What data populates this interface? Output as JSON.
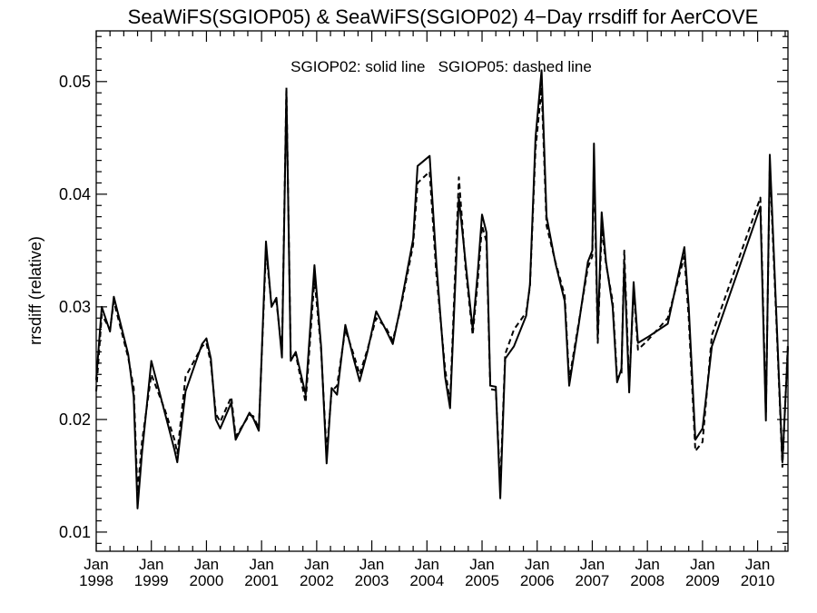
{
  "chart_data": {
    "type": "line",
    "title": "SeaWiFS(SGIOP05) & SeaWiFS(SGIOP02) 4−Day rrsdiff for AerCOVE",
    "annotation": "SGIOP02: solid line   SGIOP05: dashed line",
    "ylabel": "rrsdiff (relative)",
    "xlabel": "",
    "xlim": [
      1998.0,
      2010.55
    ],
    "ylim": [
      0.0083,
      0.0545
    ],
    "yticks": [
      {
        "value": 0.01,
        "label": "0.01"
      },
      {
        "value": 0.02,
        "label": "0.02"
      },
      {
        "value": 0.03,
        "label": "0.03"
      },
      {
        "value": 0.04,
        "label": "0.04"
      },
      {
        "value": 0.05,
        "label": "0.05"
      }
    ],
    "xticks": [
      {
        "value": 1998,
        "month": "Jan",
        "year": "1998"
      },
      {
        "value": 1999,
        "month": "Jan",
        "year": "1999"
      },
      {
        "value": 2000,
        "month": "Jan",
        "year": "2000"
      },
      {
        "value": 2001,
        "month": "Jan",
        "year": "2001"
      },
      {
        "value": 2002,
        "month": "Jan",
        "year": "2002"
      },
      {
        "value": 2003,
        "month": "Jan",
        "year": "2003"
      },
      {
        "value": 2004,
        "month": "Jan",
        "year": "2004"
      },
      {
        "value": 2005,
        "month": "Jan",
        "year": "2005"
      },
      {
        "value": 2006,
        "month": "Jan",
        "year": "2006"
      },
      {
        "value": 2007,
        "month": "Jan",
        "year": "2007"
      },
      {
        "value": 2008,
        "month": "Jan",
        "year": "2008"
      },
      {
        "value": 2009,
        "month": "Jan",
        "year": "2009"
      },
      {
        "value": 2010,
        "month": "Jan",
        "year": "2010"
      }
    ],
    "grid": false,
    "series": [
      {
        "style": "solid",
        "color": "#000000",
        "points": [
          [
            1998.0,
            0.0235
          ],
          [
            1998.1,
            0.03
          ],
          [
            1998.25,
            0.0278
          ],
          [
            1998.32,
            0.0309
          ],
          [
            1998.58,
            0.0258
          ],
          [
            1998.68,
            0.022
          ],
          [
            1998.75,
            0.0121
          ],
          [
            1998.83,
            0.017
          ],
          [
            1999.0,
            0.0252
          ],
          [
            1999.25,
            0.0205
          ],
          [
            1999.42,
            0.0173
          ],
          [
            1999.47,
            0.0162
          ],
          [
            1999.62,
            0.0225
          ],
          [
            1999.92,
            0.0267
          ],
          [
            2000.0,
            0.0272
          ],
          [
            2000.08,
            0.0254
          ],
          [
            2000.17,
            0.02
          ],
          [
            2000.25,
            0.0192
          ],
          [
            2000.45,
            0.0215
          ],
          [
            2000.53,
            0.0182
          ],
          [
            2000.78,
            0.0206
          ],
          [
            2000.85,
            0.0201
          ],
          [
            2000.95,
            0.019
          ],
          [
            2001.08,
            0.0358
          ],
          [
            2001.18,
            0.03
          ],
          [
            2001.27,
            0.0308
          ],
          [
            2001.37,
            0.0255
          ],
          [
            2001.45,
            0.0492
          ],
          [
            2001.53,
            0.0252
          ],
          [
            2001.62,
            0.026
          ],
          [
            2001.8,
            0.0222
          ],
          [
            2001.96,
            0.0337
          ],
          [
            2002.08,
            0.0265
          ],
          [
            2002.18,
            0.0161
          ],
          [
            2002.27,
            0.0228
          ],
          [
            2002.37,
            0.0222
          ],
          [
            2002.52,
            0.0284
          ],
          [
            2002.67,
            0.0254
          ],
          [
            2002.78,
            0.0234
          ],
          [
            2002.92,
            0.026
          ],
          [
            2003.08,
            0.0296
          ],
          [
            2003.25,
            0.028
          ],
          [
            2003.38,
            0.0267
          ],
          [
            2003.52,
            0.03
          ],
          [
            2003.75,
            0.036
          ],
          [
            2003.83,
            0.0425
          ],
          [
            2004.05,
            0.0434
          ],
          [
            2004.17,
            0.034
          ],
          [
            2004.33,
            0.0238
          ],
          [
            2004.42,
            0.021
          ],
          [
            2004.58,
            0.0397
          ],
          [
            2004.7,
            0.034
          ],
          [
            2004.83,
            0.028
          ],
          [
            2004.92,
            0.033
          ],
          [
            2005.0,
            0.0382
          ],
          [
            2005.08,
            0.0366
          ],
          [
            2005.15,
            0.023
          ],
          [
            2005.25,
            0.0229
          ],
          [
            2005.33,
            0.013
          ],
          [
            2005.42,
            0.0254
          ],
          [
            2005.58,
            0.0265
          ],
          [
            2005.8,
            0.0292
          ],
          [
            2005.87,
            0.032
          ],
          [
            2005.97,
            0.045
          ],
          [
            2006.08,
            0.051
          ],
          [
            2006.17,
            0.038
          ],
          [
            2006.33,
            0.0339
          ],
          [
            2006.5,
            0.0305
          ],
          [
            2006.58,
            0.023
          ],
          [
            2006.75,
            0.0283
          ],
          [
            2006.92,
            0.034
          ],
          [
            2007.0,
            0.035
          ],
          [
            2007.03,
            0.0445
          ],
          [
            2007.1,
            0.0275
          ],
          [
            2007.17,
            0.0384
          ],
          [
            2007.25,
            0.034
          ],
          [
            2007.37,
            0.03
          ],
          [
            2007.45,
            0.0233
          ],
          [
            2007.53,
            0.0245
          ],
          [
            2007.58,
            0.034
          ],
          [
            2007.67,
            0.0224
          ],
          [
            2007.75,
            0.0322
          ],
          [
            2007.83,
            0.0268
          ],
          [
            2008.0,
            0.0273
          ],
          [
            2008.37,
            0.0285
          ],
          [
            2008.67,
            0.0353
          ],
          [
            2008.75,
            0.03
          ],
          [
            2008.87,
            0.0182
          ],
          [
            2009.0,
            0.0192
          ],
          [
            2009.17,
            0.0265
          ],
          [
            2010.05,
            0.0389
          ],
          [
            2010.15,
            0.0199
          ],
          [
            2010.22,
            0.0435
          ],
          [
            2010.35,
            0.028
          ],
          [
            2010.45,
            0.0162
          ],
          [
            2010.55,
            0.0264
          ]
        ]
      },
      {
        "style": "dashed",
        "color": "#000000",
        "points": [
          [
            1998.0,
            0.0225
          ],
          [
            1998.1,
            0.0293
          ],
          [
            1998.25,
            0.028
          ],
          [
            1998.32,
            0.0305
          ],
          [
            1998.58,
            0.0255
          ],
          [
            1998.68,
            0.0228
          ],
          [
            1998.75,
            0.0135
          ],
          [
            1998.83,
            0.018
          ],
          [
            1999.0,
            0.024
          ],
          [
            1999.25,
            0.0208
          ],
          [
            1999.42,
            0.0182
          ],
          [
            1999.47,
            0.017
          ],
          [
            1999.62,
            0.0238
          ],
          [
            1999.92,
            0.0265
          ],
          [
            2000.0,
            0.0268
          ],
          [
            2000.08,
            0.025
          ],
          [
            2000.17,
            0.0205
          ],
          [
            2000.25,
            0.0198
          ],
          [
            2000.45,
            0.022
          ],
          [
            2000.53,
            0.0185
          ],
          [
            2000.78,
            0.0204
          ],
          [
            2000.85,
            0.0203
          ],
          [
            2000.95,
            0.0192
          ],
          [
            2001.08,
            0.035
          ],
          [
            2001.18,
            0.0302
          ],
          [
            2001.27,
            0.0305
          ],
          [
            2001.37,
            0.026
          ],
          [
            2001.45,
            0.0495
          ],
          [
            2001.53,
            0.0255
          ],
          [
            2001.62,
            0.0258
          ],
          [
            2001.8,
            0.0215
          ],
          [
            2001.96,
            0.0325
          ],
          [
            2002.08,
            0.0262
          ],
          [
            2002.18,
            0.017
          ],
          [
            2002.27,
            0.0225
          ],
          [
            2002.37,
            0.023
          ],
          [
            2002.52,
            0.028
          ],
          [
            2002.67,
            0.0258
          ],
          [
            2002.78,
            0.024
          ],
          [
            2002.92,
            0.0262
          ],
          [
            2003.08,
            0.029
          ],
          [
            2003.25,
            0.0282
          ],
          [
            2003.38,
            0.027
          ],
          [
            2003.52,
            0.0298
          ],
          [
            2003.75,
            0.0355
          ],
          [
            2003.83,
            0.041
          ],
          [
            2004.05,
            0.042
          ],
          [
            2004.17,
            0.033
          ],
          [
            2004.33,
            0.0245
          ],
          [
            2004.42,
            0.0215
          ],
          [
            2004.58,
            0.0415
          ],
          [
            2004.7,
            0.0335
          ],
          [
            2004.83,
            0.0275
          ],
          [
            2004.92,
            0.0322
          ],
          [
            2005.0,
            0.0372
          ],
          [
            2005.08,
            0.0358
          ],
          [
            2005.15,
            0.0227
          ],
          [
            2005.25,
            0.0226
          ],
          [
            2005.33,
            0.014
          ],
          [
            2005.42,
            0.0258
          ],
          [
            2005.58,
            0.028
          ],
          [
            2005.8,
            0.0295
          ],
          [
            2005.87,
            0.0318
          ],
          [
            2005.97,
            0.044
          ],
          [
            2006.08,
            0.0495
          ],
          [
            2006.17,
            0.0372
          ],
          [
            2006.33,
            0.034
          ],
          [
            2006.5,
            0.031
          ],
          [
            2006.58,
            0.0235
          ],
          [
            2006.75,
            0.0285
          ],
          [
            2006.92,
            0.0335
          ],
          [
            2007.0,
            0.0345
          ],
          [
            2007.03,
            0.043
          ],
          [
            2007.1,
            0.0268
          ],
          [
            2007.17,
            0.037
          ],
          [
            2007.25,
            0.0338
          ],
          [
            2007.37,
            0.0305
          ],
          [
            2007.45,
            0.0237
          ],
          [
            2007.53,
            0.024
          ],
          [
            2007.58,
            0.035
          ],
          [
            2007.67,
            0.023
          ],
          [
            2007.75,
            0.0315
          ],
          [
            2007.83,
            0.0262
          ],
          [
            2008.0,
            0.027
          ],
          [
            2008.37,
            0.029
          ],
          [
            2008.67,
            0.0345
          ],
          [
            2008.75,
            0.029
          ],
          [
            2008.87,
            0.0172
          ],
          [
            2009.0,
            0.018
          ],
          [
            2009.17,
            0.0275
          ],
          [
            2010.05,
            0.0397
          ],
          [
            2010.15,
            0.0205
          ],
          [
            2010.22,
            0.0425
          ],
          [
            2010.35,
            0.0275
          ],
          [
            2010.45,
            0.0158
          ],
          [
            2010.55,
            0.0268
          ]
        ]
      }
    ]
  }
}
